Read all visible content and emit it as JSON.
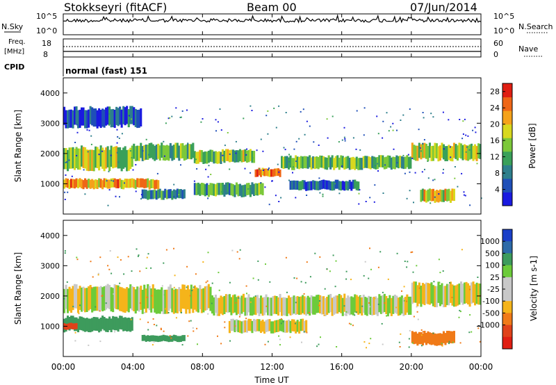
{
  "header": {
    "station": "Stokkseyri (fitACF)",
    "beam": "Beam 00",
    "date": "07/Jun/2014"
  },
  "summary_panels": {
    "nsky": {
      "label": "N.Sky",
      "left_ticks": [
        "10^5",
        "10^0"
      ],
      "right_ticks": [
        "10^5",
        "10^0"
      ],
      "right_label": "N.Search"
    },
    "freq": {
      "label_line1": "Freq.",
      "label_line2": "[MHz]",
      "left_ticks": [
        "18",
        "8"
      ],
      "right_ticks": [
        "60",
        "0"
      ],
      "right_label": "Nave"
    },
    "cpid": {
      "label": "CPID",
      "value": "normal (fast) 151"
    }
  },
  "time_axis": {
    "label": "Time UT",
    "ticks": [
      "00:00",
      "04:00",
      "08:00",
      "12:00",
      "16:00",
      "20:00",
      "00:00"
    ]
  },
  "chart_data": [
    {
      "type": "heatmap",
      "name": "power-panel",
      "ylabel": "Slant Range [km]",
      "xlabel": "",
      "x_range_hours": [
        0,
        24
      ],
      "ylim": [
        0,
        4500
      ],
      "y_ticks": [
        1000,
        2000,
        3000,
        4000
      ],
      "colorbar": {
        "label": "Power [dB]",
        "ticks": [
          4,
          8,
          12,
          16,
          20,
          24,
          28
        ],
        "range": [
          0,
          30
        ],
        "colors": [
          "#1a1ae0",
          "#1f4fb8",
          "#2e7f8c",
          "#3aa05a",
          "#7cc83a",
          "#d8d81e",
          "#f5a21a",
          "#ef6616",
          "#e01e12"
        ]
      },
      "bands": [
        {
          "t0": 0.0,
          "t1": 5.5,
          "r0": 850,
          "r1": 1150,
          "level": 0.72
        },
        {
          "t0": 0.0,
          "t1": 4.0,
          "r0": 1500,
          "r1": 2200,
          "level": 0.55
        },
        {
          "t0": 4.0,
          "t1": 7.5,
          "r0": 1800,
          "r1": 2300,
          "level": 0.45
        },
        {
          "t0": 7.5,
          "t1": 11.0,
          "r0": 1700,
          "r1": 2100,
          "level": 0.5
        },
        {
          "t0": 11.0,
          "t1": 12.5,
          "r0": 1250,
          "r1": 1500,
          "level": 0.75
        },
        {
          "t0": 12.5,
          "t1": 20.0,
          "r0": 1500,
          "r1": 1900,
          "level": 0.45
        },
        {
          "t0": 20.0,
          "t1": 24.0,
          "r0": 1800,
          "r1": 2300,
          "level": 0.55
        },
        {
          "t0": 20.5,
          "t1": 22.5,
          "r0": 400,
          "r1": 800,
          "level": 0.62
        },
        {
          "t0": 0.0,
          "t1": 4.5,
          "r0": 2900,
          "r1": 3500,
          "level": 0.15
        },
        {
          "t0": 4.5,
          "t1": 7.0,
          "r0": 500,
          "r1": 800,
          "level": 0.35
        },
        {
          "t0": 7.5,
          "t1": 11.5,
          "r0": 600,
          "r1": 1000,
          "level": 0.4
        },
        {
          "t0": 13.0,
          "t1": 17.0,
          "r0": 800,
          "r1": 1100,
          "level": 0.25
        }
      ]
    },
    {
      "type": "heatmap",
      "name": "velocity-panel",
      "ylabel": "Slant Range [km]",
      "xlabel": "Time UT",
      "x_range_hours": [
        0,
        24
      ],
      "ylim": [
        0,
        4500
      ],
      "y_ticks": [
        1000,
        2000,
        3000,
        4000
      ],
      "colorbar": {
        "label": "Velocity [m s-1]",
        "ticks": [
          1000,
          500,
          100,
          25,
          -25,
          -100,
          -500,
          -1000
        ],
        "colors": [
          "#1a3fc8",
          "#2d6aa8",
          "#3d9b5c",
          "#6ccb3a",
          "#c8c8c8",
          "#c8c8c8",
          "#f5b41a",
          "#f07a18",
          "#e0421a",
          "#e01e12"
        ]
      },
      "bands": [
        {
          "t0": 0.0,
          "t1": 4.0,
          "r0": 850,
          "r1": 1300,
          "vel": 300
        },
        {
          "t0": 0.0,
          "t1": 0.8,
          "r0": 900,
          "r1": 1100,
          "vel": -700
        },
        {
          "t0": 0.0,
          "t1": 8.5,
          "r0": 1500,
          "r1": 2300,
          "vel": 0
        },
        {
          "t0": 8.5,
          "t1": 20.0,
          "r0": 1400,
          "r1": 2000,
          "vel": 0
        },
        {
          "t0": 20.0,
          "t1": 24.0,
          "r0": 1700,
          "r1": 2400,
          "vel": 0
        },
        {
          "t0": 20.0,
          "t1": 22.5,
          "r0": 400,
          "r1": 800,
          "vel": -300
        },
        {
          "t0": 4.5,
          "t1": 7.0,
          "r0": 500,
          "r1": 700,
          "vel": 200
        },
        {
          "t0": 9.5,
          "t1": 14.0,
          "r0": 800,
          "r1": 1200,
          "vel": 0
        }
      ]
    }
  ]
}
